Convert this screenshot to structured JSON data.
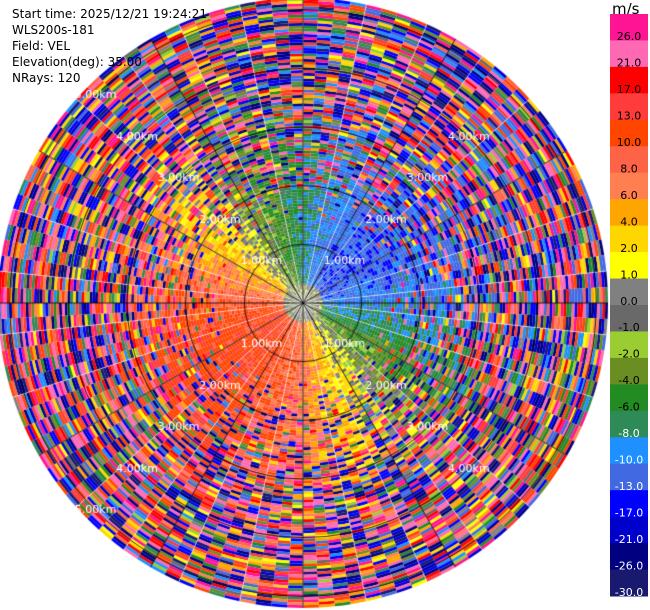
{
  "header": {
    "start_time": "Start time: 2025/12/21 19:24:21",
    "instrument": "WLS200s-181",
    "field": "Field: VEL",
    "elevation": "Elevation(deg): 35.00",
    "nrays": "NRays: 120"
  },
  "chart_data": {
    "type": "heatmap",
    "projection": "polar-ppi",
    "nrays": 120,
    "max_range_km": 5.2,
    "range_rings_km": [
      1.0,
      2.0,
      3.0,
      4.0,
      5.0
    ],
    "range_labels": [
      {
        "text": "1.00km",
        "km": 1.0
      },
      {
        "text": "2.00km",
        "km": 2.0
      },
      {
        "text": "3.00km",
        "km": 3.0
      },
      {
        "text": "4.00km",
        "km": 4.0
      },
      {
        "text": "5.00km",
        "km": 5.0
      }
    ],
    "colorbar": {
      "unit": "m/s",
      "vmin": -30.0,
      "vmax": 30.0,
      "ticks": [
        "26.0",
        "21.0",
        "17.0",
        "13.0",
        "10.0",
        "8.0",
        "6.0",
        "4.0",
        "2.0",
        "1.0",
        "0.0",
        "-1.0",
        "-2.0",
        "-4.0",
        "-6.0",
        "-8.0",
        "-10.0",
        "-13.0",
        "-17.0",
        "-21.0",
        "-26.0",
        "-30.0"
      ],
      "colors": [
        "#ff1493",
        "#ff69b4",
        "#ff0000",
        "#ff3b3b",
        "#ff4500",
        "#ff6347",
        "#ff7f50",
        "#ffa500",
        "#ffd700",
        "#ffff00",
        "#808080",
        "#696969",
        "#9acd32",
        "#6b8e23",
        "#228b22",
        "#2e8b57",
        "#1e90ff",
        "#4169e1",
        "#0000ff",
        "#0000cd",
        "#000080",
        "#191970"
      ]
    }
  }
}
